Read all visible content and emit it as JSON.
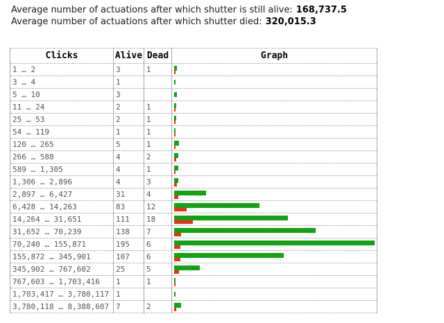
{
  "page": {
    "stats": [
      {
        "label": "Average number of actuations after which shutter is still alive:",
        "value": "168,737.5"
      },
      {
        "label": "Average number of actuations after which shutter died:",
        "value": "320,015.3"
      }
    ]
  },
  "table": {
    "columns": [
      "Clicks",
      "Alive",
      "Dead",
      "Graph"
    ],
    "rows": [
      {
        "clicks": "1 … 2",
        "alive": 3,
        "dead": 1
      },
      {
        "clicks": "3 … 4",
        "alive": 1,
        "dead": null
      },
      {
        "clicks": "5 … 10",
        "alive": 3,
        "dead": null
      },
      {
        "clicks": "11 … 24",
        "alive": 2,
        "dead": 1
      },
      {
        "clicks": "25 … 53",
        "alive": 2,
        "dead": 1
      },
      {
        "clicks": "54 … 119",
        "alive": 1,
        "dead": 1
      },
      {
        "clicks": "120 … 265",
        "alive": 5,
        "dead": 1
      },
      {
        "clicks": "266 … 588",
        "alive": 4,
        "dead": 2
      },
      {
        "clicks": "589 … 1,305",
        "alive": 4,
        "dead": 1
      },
      {
        "clicks": "1,306 … 2,896",
        "alive": 4,
        "dead": 3
      },
      {
        "clicks": "2,897 … 6,427",
        "alive": 31,
        "dead": 4
      },
      {
        "clicks": "6,428 … 14,263",
        "alive": 83,
        "dead": 12
      },
      {
        "clicks": "14,264 … 31,651",
        "alive": 111,
        "dead": 18
      },
      {
        "clicks": "31,652 … 70,239",
        "alive": 138,
        "dead": 7
      },
      {
        "clicks": "70,240 … 155,871",
        "alive": 195,
        "dead": 6
      },
      {
        "clicks": "155,872 … 345,901",
        "alive": 107,
        "dead": 6
      },
      {
        "clicks": "345,902 … 767,602",
        "alive": 25,
        "dead": 5
      },
      {
        "clicks": "767,603 … 1,703,416",
        "alive": 1,
        "dead": 1
      },
      {
        "clicks": "1,703,417 … 3,780,117",
        "alive": 1,
        "dead": null
      },
      {
        "clicks": "3,780,118 … 8,388,607",
        "alive": 7,
        "dead": 2
      }
    ]
  },
  "chart_data": {
    "type": "bar",
    "orientation": "horizontal",
    "title": "Graph",
    "categories": [
      "1 … 2",
      "3 … 4",
      "5 … 10",
      "11 … 24",
      "25 … 53",
      "54 … 119",
      "120 … 265",
      "266 … 588",
      "589 … 1,305",
      "1,306 … 2,896",
      "2,897 … 6,427",
      "6,428 … 14,263",
      "14,264 … 31,651",
      "31,652 … 70,239",
      "70,240 … 155,871",
      "155,872 … 345,901",
      "345,902 … 767,602",
      "767,603 … 1,703,416",
      "1,703,417 … 3,780,117",
      "3,780,118 … 8,388,607"
    ],
    "series": [
      {
        "name": "Alive",
        "color": "#12a312",
        "values": [
          3,
          1,
          3,
          2,
          2,
          1,
          5,
          4,
          4,
          4,
          31,
          83,
          111,
          138,
          195,
          107,
          25,
          1,
          1,
          7
        ]
      },
      {
        "name": "Dead",
        "color": "#f02e17",
        "values": [
          1,
          null,
          null,
          1,
          1,
          1,
          1,
          2,
          1,
          3,
          4,
          12,
          18,
          7,
          6,
          6,
          5,
          1,
          null,
          2
        ]
      }
    ],
    "xlim": [
      0,
      200
    ],
    "axes_hidden": true,
    "legend": "none"
  },
  "colors": {
    "alive_bar": "#12a312",
    "dead_bar": "#f02e17",
    "vertical_border": "#a9a9a9",
    "horizontal_border": "#999999",
    "cell_text": "#555555"
  }
}
